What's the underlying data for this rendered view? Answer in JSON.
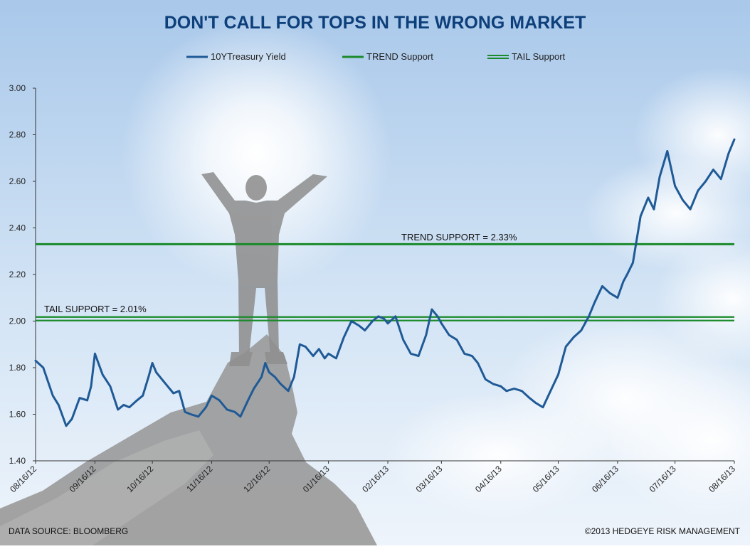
{
  "chart_data": {
    "type": "line",
    "title": "DON'T CALL FOR TOPS IN THE WRONG MARKET",
    "ylim": [
      1.4,
      3.0
    ],
    "y_ticks": [
      "1.40",
      "1.60",
      "1.80",
      "2.00",
      "2.20",
      "2.40",
      "2.60",
      "2.80",
      "3.00"
    ],
    "x_ticks": [
      "08/16/12",
      "09/16/12",
      "10/16/12",
      "11/16/12",
      "12/16/12",
      "01/16/13",
      "02/16/13",
      "03/16/13",
      "04/16/13",
      "05/16/13",
      "06/16/13",
      "07/16/13",
      "08/16/13"
    ],
    "legend_position": "top",
    "series": [
      {
        "name": "10YTreasury Yield",
        "color": "#1f5a96",
        "x": [
          "08/16/12",
          "08/20/12",
          "08/25/12",
          "08/28/12",
          "09/01/12",
          "09/04/12",
          "09/08/12",
          "09/12/12",
          "09/14/12",
          "09/16/12",
          "09/20/12",
          "09/24/12",
          "09/28/12",
          "10/01/12",
          "10/04/12",
          "10/08/12",
          "10/11/12",
          "10/14/12",
          "10/16/12",
          "10/18/12",
          "10/21/12",
          "10/24/12",
          "10/27/12",
          "10/30/12",
          "11/02/12",
          "11/05/12",
          "11/09/12",
          "11/13/12",
          "11/16/12",
          "11/20/12",
          "11/24/12",
          "11/28/12",
          "12/01/12",
          "12/05/12",
          "12/08/12",
          "12/12/12",
          "12/14/12",
          "12/16/12",
          "12/19/12",
          "12/22/12",
          "12/26/12",
          "12/29/12",
          "01/01/13",
          "01/04/13",
          "01/08/13",
          "01/11/13",
          "01/14/13",
          "01/16/13",
          "01/20/13",
          "01/24/13",
          "01/28/13",
          "02/01/13",
          "02/04/13",
          "02/08/13",
          "02/11/13",
          "02/14/13",
          "02/16/13",
          "02/20/13",
          "02/24/13",
          "02/28/13",
          "03/04/13",
          "03/08/13",
          "03/11/13",
          "03/14/13",
          "03/16/13",
          "03/20/13",
          "03/24/13",
          "03/28/13",
          "04/01/13",
          "04/04/13",
          "04/08/13",
          "04/12/13",
          "04/16/13",
          "04/19/13",
          "04/23/13",
          "04/27/13",
          "05/01/13",
          "05/04/13",
          "05/08/13",
          "05/12/13",
          "05/16/13",
          "05/20/13",
          "05/24/13",
          "05/28/13",
          "06/01/13",
          "06/04/13",
          "06/08/13",
          "06/12/13",
          "06/16/13",
          "06/19/13",
          "06/21/13",
          "06/24/13",
          "06/28/13",
          "07/02/13",
          "07/05/13",
          "07/08/13",
          "07/12/13",
          "07/16/13",
          "07/20/13",
          "07/24/13",
          "07/28/13",
          "08/01/13",
          "08/05/13",
          "08/09/13",
          "08/13/13",
          "08/16/13"
        ],
        "values": [
          1.83,
          1.8,
          1.68,
          1.64,
          1.55,
          1.58,
          1.67,
          1.66,
          1.72,
          1.86,
          1.77,
          1.72,
          1.62,
          1.64,
          1.63,
          1.66,
          1.68,
          1.76,
          1.82,
          1.78,
          1.75,
          1.72,
          1.69,
          1.7,
          1.61,
          1.6,
          1.59,
          1.63,
          1.68,
          1.66,
          1.62,
          1.61,
          1.59,
          1.66,
          1.71,
          1.76,
          1.82,
          1.78,
          1.76,
          1.73,
          1.7,
          1.76,
          1.9,
          1.89,
          1.85,
          1.88,
          1.84,
          1.86,
          1.84,
          1.93,
          2.0,
          1.98,
          1.96,
          2.0,
          2.02,
          2.01,
          1.99,
          2.02,
          1.92,
          1.86,
          1.85,
          1.94,
          2.05,
          2.02,
          1.99,
          1.94,
          1.92,
          1.86,
          1.85,
          1.82,
          1.75,
          1.73,
          1.72,
          1.7,
          1.71,
          1.7,
          1.67,
          1.65,
          1.63,
          1.7,
          1.77,
          1.89,
          1.93,
          1.96,
          2.02,
          2.08,
          2.15,
          2.12,
          2.1,
          2.17,
          2.2,
          2.25,
          2.45,
          2.53,
          2.48,
          2.62,
          2.73,
          2.58,
          2.52,
          2.48,
          2.56,
          2.6,
          2.65,
          2.61,
          2.72,
          2.78
        ]
      },
      {
        "name": "TREND Support",
        "color": "#1a8a2a",
        "level": 2.33
      },
      {
        "name": "TAIL Support",
        "color": "#1a8a2a",
        "level": 2.01
      }
    ],
    "annotations": [
      {
        "text": "TREND SUPPORT = 2.33%",
        "level": 2.33
      },
      {
        "text": "TAIL SUPPORT = 2.01%",
        "level": 2.01
      }
    ]
  },
  "footer": {
    "source": "DATA SOURCE: BLOOMBERG",
    "copyright": "©2013 HEDGEYE RISK MANAGEMENT"
  }
}
